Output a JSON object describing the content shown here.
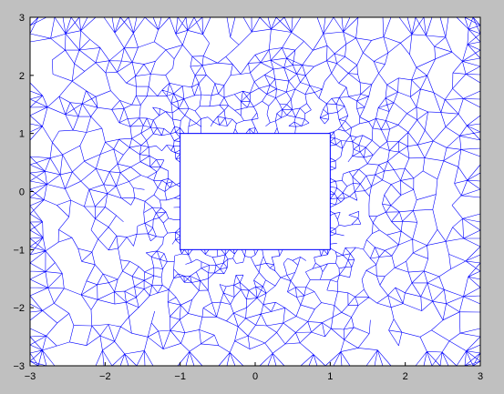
{
  "figure": {
    "background_color": "#c0c0c0",
    "plot_background": "#ffffff",
    "mesh_color": "#0000ff"
  },
  "chart_data": {
    "type": "mesh",
    "title": "",
    "xlabel": "",
    "ylabel": "",
    "xlim": [
      -3,
      3
    ],
    "ylim": [
      -3,
      3
    ],
    "x_ticks": [
      "−3",
      "−2",
      "−1",
      "0",
      "1",
      "2",
      "3"
    ],
    "y_ticks": [
      "3",
      "2",
      "1",
      "0",
      "−1",
      "−2",
      "−3"
    ],
    "outer_domain": {
      "x": [
        -3,
        3
      ],
      "y": [
        -3,
        3
      ]
    },
    "hole": {
      "x": [
        -1,
        1
      ],
      "y": [
        -1,
        1
      ]
    },
    "grid": false,
    "legend": "none"
  }
}
